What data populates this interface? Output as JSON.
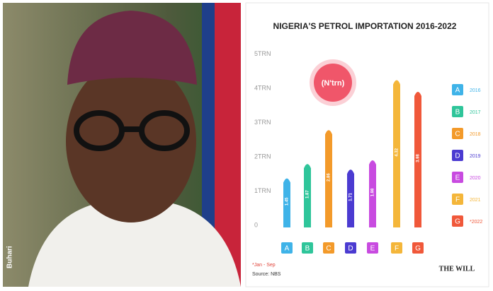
{
  "photo": {
    "caption": "Buhari"
  },
  "chart_data": {
    "type": "bar",
    "title": "NIGERIA'S PETROL IMPORTATION 2016-2022",
    "badge": "(N'trn)",
    "categories": [
      "A",
      "B",
      "C",
      "D",
      "E",
      "F",
      "G"
    ],
    "values": [
      1.45,
      1.87,
      2.86,
      1.71,
      1.98,
      4.32,
      3.98
    ],
    "colors": [
      "#3fb3e8",
      "#2fc59a",
      "#f39a2a",
      "#4b3bd1",
      "#c84be0",
      "#f4b63a",
      "#f0583a"
    ],
    "legend_labels": [
      "2016",
      "2017",
      "2018",
      "2019",
      "2020",
      "2021",
      "*2022"
    ],
    "ylim": [
      0,
      5
    ],
    "yticks": [
      0,
      {
        "value": 1,
        "label": "1TRN"
      },
      {
        "value": 2,
        "label": "2TRN"
      },
      {
        "value": 3,
        "label": "3TRN"
      },
      {
        "value": 4,
        "label": "4TRN"
      },
      {
        "value": 5,
        "label": "5TRN"
      }
    ],
    "footnote": "*Jan - Sep",
    "source": "Source: NBS",
    "logo": "THE WILL"
  }
}
